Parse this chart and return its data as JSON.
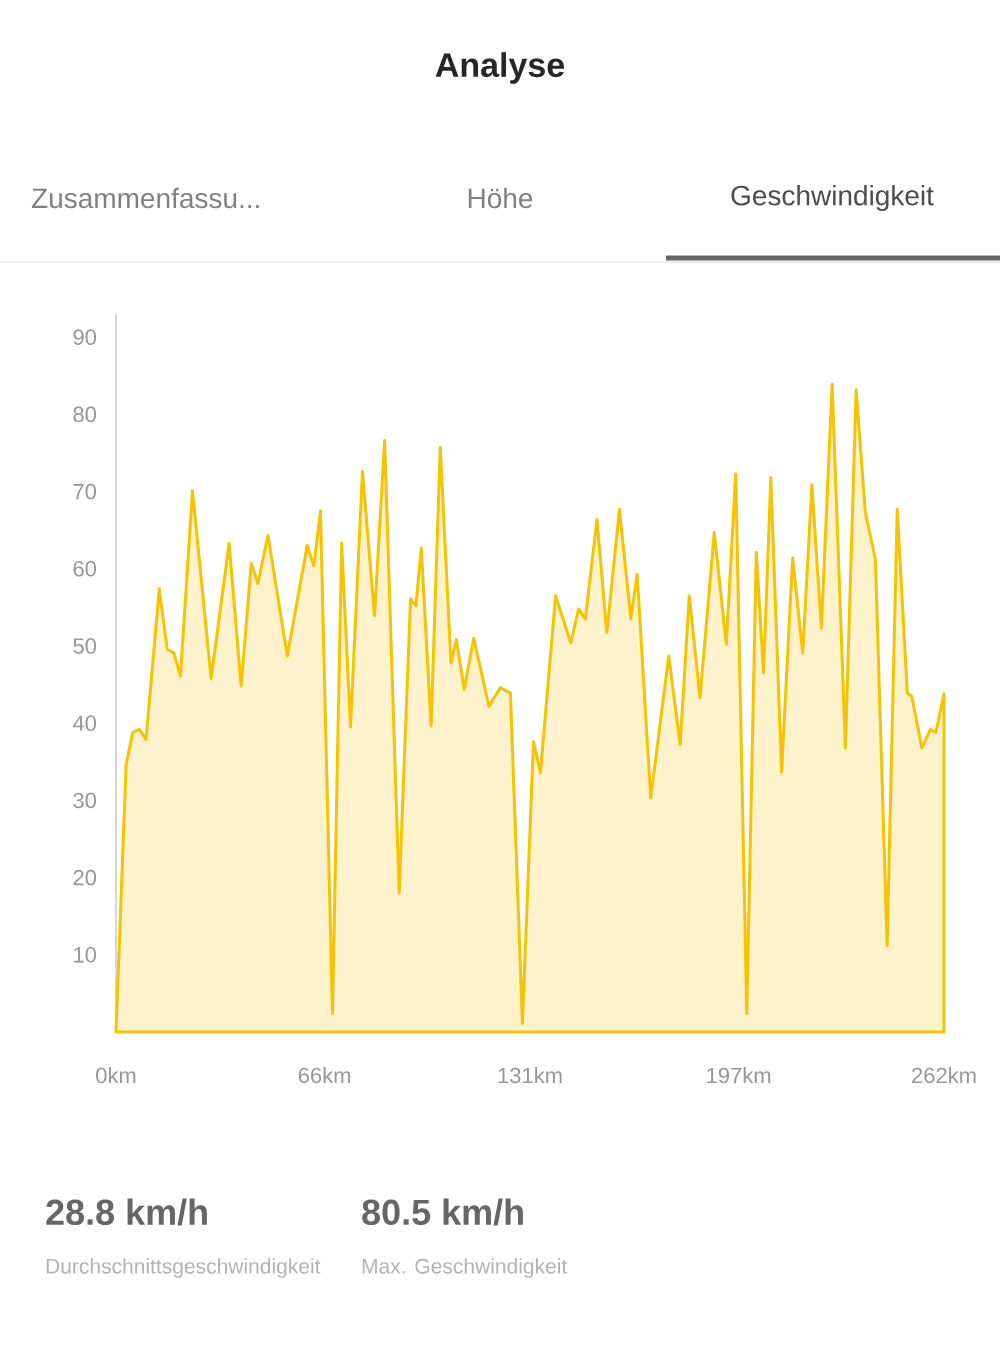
{
  "chart_data": {
    "type": "area",
    "title": "Analyse",
    "annotations": [
      "Zusammenfassu...",
      "Höhe",
      "Geschwindigkeit",
      "28.8 km/h",
      "Durchschnittsgeschwindigkeit",
      "80.5 km/h",
      "Max. Geschwindigkeit"
    ],
    "series": [
      {
        "color": "#f7c200",
        "x": [
          0,
          3.2,
          5.3,
          7.4,
          9.5,
          13.7,
          16.2,
          18.3,
          20.4,
          24.2,
          30.1,
          35.8,
          39.6,
          42.8,
          44.9,
          48.1,
          54.2,
          60.5,
          62.6,
          64.7,
          68.5,
          71.4,
          74.2,
          78.0,
          81.8,
          85.0,
          89.6,
          93.2,
          94.9,
          96.6,
          99.7,
          102.6,
          106.0,
          107.7,
          110.2,
          113.2,
          118.0,
          121.6,
          124.8,
          128.6,
          132.1,
          134.3,
          139.1,
          143.9,
          146.4,
          148.5,
          152.2,
          155.3,
          159.3,
          162.9,
          164.9,
          169.2,
          174.9,
          178.5,
          181.4,
          184.8,
          189.3,
          193.1,
          196.1,
          199.6,
          202.6,
          204.9,
          207.2,
          210.6,
          214.1,
          217.3,
          220.2,
          223.2,
          226.6,
          230.8,
          234.2,
          237.1,
          240.3,
          244.0,
          247.2,
          250.4,
          251.8,
          255.0,
          257.7,
          259.4,
          262.0
        ],
        "values": [
          0,
          34.6,
          38.8,
          39.2,
          37.9,
          57.4,
          49.6,
          49.1,
          46.1,
          70.1,
          45.8,
          63.3,
          44.8,
          60.7,
          58.1,
          64.3,
          48.7,
          63.0,
          60.4,
          67.5,
          2.4,
          63.3,
          39.5,
          72.6,
          53.9,
          76.6,
          18.0,
          56.1,
          55.2,
          62.7,
          39.6,
          75.7,
          47.8,
          50.8,
          44.4,
          51.0,
          42.2,
          44.6,
          43.9,
          1.1,
          37.6,
          33.6,
          56.5,
          50.4,
          54.8,
          53.5,
          66.4,
          51.7,
          67.7,
          53.5,
          59.3,
          30.3,
          48.7,
          37.2,
          56.5,
          43.3,
          64.7,
          50.2,
          72.3,
          2.4,
          62.1,
          46.5,
          71.8,
          33.7,
          61.4,
          49.1,
          70.9,
          52.3,
          83.9,
          36.8,
          83.2,
          67.3,
          61.2,
          11.2,
          67.7,
          43.9,
          43.5,
          36.8,
          39.2,
          38.8,
          43.8
        ]
      }
    ],
    "xlim": [
      0,
      262
    ],
    "xticks": [
      {
        "value": 0,
        "label": "0km"
      },
      {
        "value": 66,
        "label": "66km"
      },
      {
        "value": 131,
        "label": "131km"
      },
      {
        "value": 197,
        "label": "197km"
      },
      {
        "value": 262,
        "label": "262km"
      }
    ],
    "ylim": [
      0,
      93
    ],
    "yticks": [
      10,
      20,
      30,
      40,
      50,
      60,
      70,
      80,
      90
    ],
    "grid": false
  }
}
